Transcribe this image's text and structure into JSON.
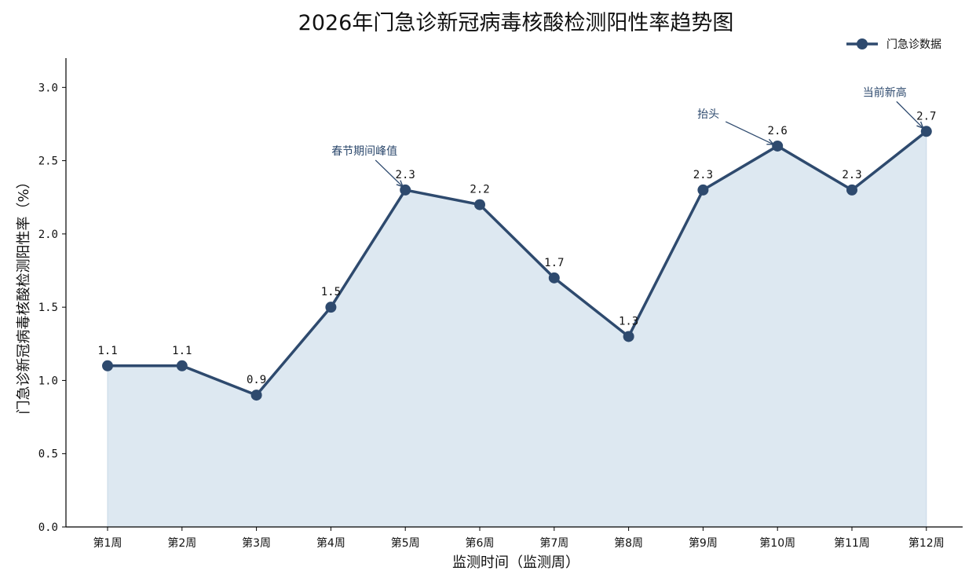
{
  "chart_data": {
    "type": "line",
    "title": "2026年门急诊新冠病毒核酸检测阳性率趋势图",
    "xlabel": "监测时间（监测周）",
    "ylabel": "门急诊新冠病毒核酸检测阳性率（%）",
    "categories": [
      "第1周",
      "第2周",
      "第3周",
      "第4周",
      "第5周",
      "第6周",
      "第7周",
      "第8周",
      "第9周",
      "第10周",
      "第11周",
      "第12周"
    ],
    "series": [
      {
        "name": "门急诊数据",
        "values": [
          1.1,
          1.1,
          0.9,
          1.5,
          2.3,
          2.2,
          1.7,
          1.3,
          2.3,
          2.6,
          2.3,
          2.7
        ],
        "color": "#2e4a6e",
        "fill": "#dde8f1"
      }
    ],
    "value_labels": [
      "1.1",
      "1.1",
      "0.9",
      "1.5",
      "2.3",
      "2.2",
      "1.7",
      "1.3",
      "2.3",
      "2.6",
      "2.3",
      "2.7"
    ],
    "ylim": [
      0,
      3.2
    ],
    "yticks": [
      "0.0",
      "0.5",
      "1.0",
      "1.5",
      "2.0",
      "2.5",
      "3.0"
    ],
    "legend_position": "top-right",
    "grid": false,
    "annotations": [
      {
        "text": "春节期间峰值",
        "index": 4
      },
      {
        "text": "抬头",
        "index": 9
      },
      {
        "text": "当前新高",
        "index": 11
      }
    ],
    "annotation_color": "#2e4a6e"
  }
}
